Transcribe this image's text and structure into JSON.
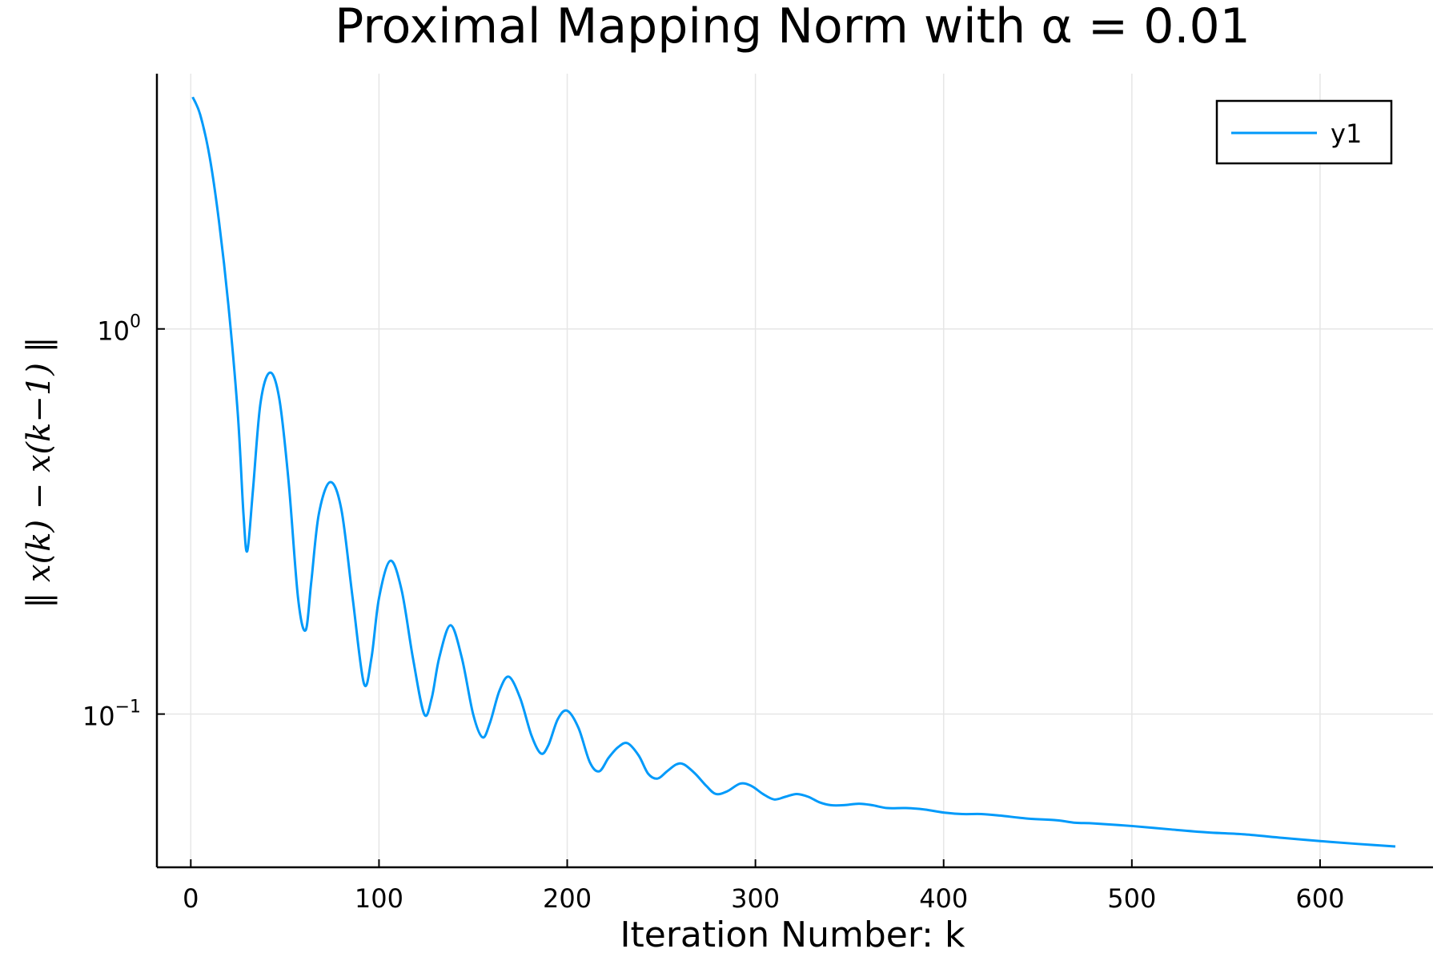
{
  "chart_data": {
    "type": "line",
    "title": "Proximal Mapping Norm with α = 0.01",
    "xlabel": "Iteration Number: k",
    "ylabel": "‖ x(k) − x(k−1) ‖",
    "yscale": "log",
    "xlim": [
      -18,
      660
    ],
    "ylim": [
      0.04,
      4.6
    ],
    "xticks": [
      0,
      100,
      200,
      300,
      400,
      500,
      600
    ],
    "yticks": [
      {
        "value": 1,
        "base": "10",
        "exp": "0"
      },
      {
        "value": 0.1,
        "base": "10",
        "exp": "−1"
      }
    ],
    "grid": true,
    "legend": {
      "position": "top-right",
      "entries": [
        "y1"
      ]
    },
    "series": [
      {
        "name": "y1",
        "color": "#009AFA",
        "x": [
          1,
          5,
          10,
          15,
          20,
          25,
          28,
          30,
          33,
          37,
          42,
          47,
          52,
          57,
          61,
          64,
          68,
          74,
          80,
          86,
          92,
          96,
          100,
          106,
          112,
          118,
          124,
          128,
          132,
          138,
          144,
          150,
          155,
          159,
          164,
          169,
          175,
          181,
          186,
          190,
          195,
          200,
          206,
          212,
          217,
          222,
          227,
          232,
          238,
          243,
          248,
          253,
          258,
          262,
          268,
          274,
          279,
          285,
          292,
          298,
          304,
          310,
          316,
          322,
          328,
          334,
          340,
          347,
          355,
          362,
          370,
          380,
          390,
          400,
          410,
          420,
          430,
          445,
          460,
          470,
          480,
          500,
          520,
          540,
          560,
          580,
          600,
          620,
          640
        ],
        "y": [
          4.0,
          3.6,
          2.8,
          1.9,
          1.15,
          0.6,
          0.33,
          0.265,
          0.38,
          0.64,
          0.77,
          0.66,
          0.4,
          0.2,
          0.165,
          0.22,
          0.33,
          0.4,
          0.34,
          0.2,
          0.12,
          0.14,
          0.2,
          0.25,
          0.21,
          0.14,
          0.1,
          0.11,
          0.14,
          0.17,
          0.14,
          0.1,
          0.087,
          0.095,
          0.115,
          0.125,
          0.11,
          0.088,
          0.079,
          0.083,
          0.097,
          0.102,
          0.092,
          0.075,
          0.071,
          0.077,
          0.082,
          0.084,
          0.078,
          0.07,
          0.068,
          0.071,
          0.074,
          0.074,
          0.07,
          0.065,
          0.062,
          0.063,
          0.066,
          0.065,
          0.062,
          0.06,
          0.061,
          0.062,
          0.061,
          0.059,
          0.058,
          0.058,
          0.0585,
          0.058,
          0.057,
          0.057,
          0.0565,
          0.0555,
          0.055,
          0.055,
          0.0545,
          0.0535,
          0.053,
          0.0522,
          0.052,
          0.0512,
          0.0502,
          0.0493,
          0.0487,
          0.0477,
          0.0468,
          0.046,
          0.0453
        ]
      }
    ]
  }
}
